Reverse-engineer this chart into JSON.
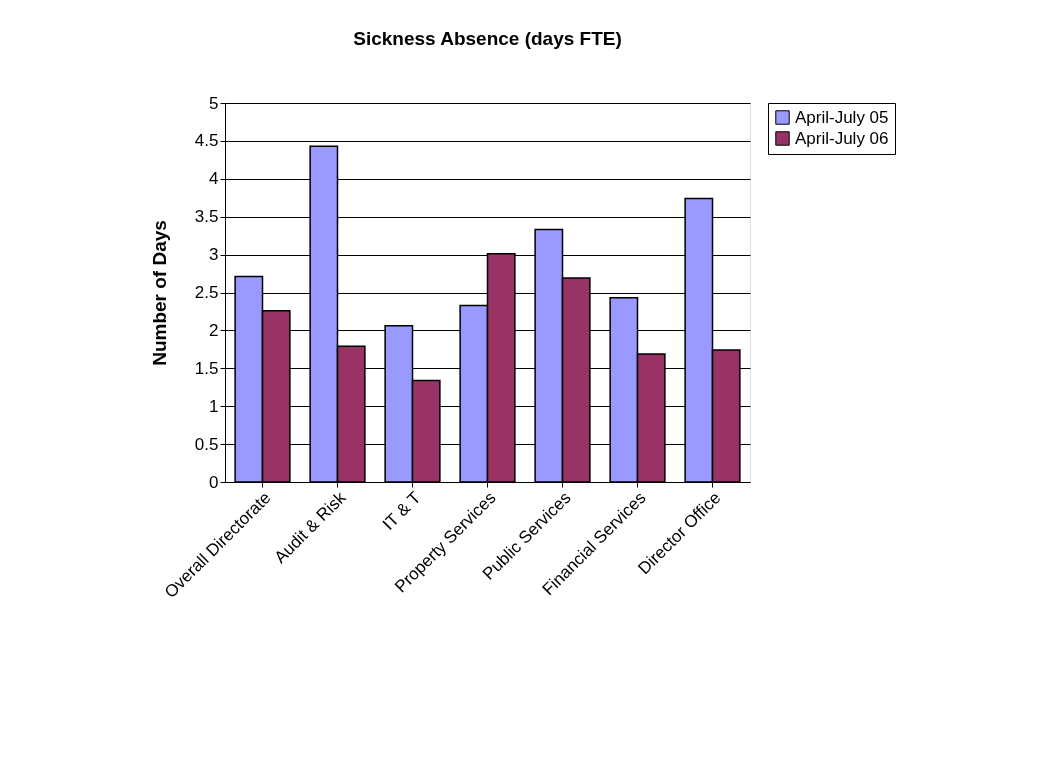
{
  "chart_data": {
    "type": "bar",
    "title": "Sickness Absence (days FTE)",
    "ylabel": "Number of Days",
    "categories": [
      "Overall Directorate",
      "Audit & Risk",
      "IT & T",
      "Property Services",
      "Public Services",
      "Financial Services",
      "Director Office"
    ],
    "series": [
      {
        "name": "April-July 05",
        "color": "#9999ff",
        "values": [
          2.71,
          4.43,
          2.06,
          2.33,
          3.33,
          2.43,
          3.74
        ]
      },
      {
        "name": "April-July 06",
        "color": "#993366",
        "values": [
          2.26,
          1.79,
          1.34,
          3.01,
          2.69,
          1.69,
          1.74
        ]
      }
    ],
    "ylim": [
      0,
      5
    ],
    "yticks": [
      0,
      0.5,
      1,
      1.5,
      2,
      2.5,
      3,
      3.5,
      4,
      4.5,
      5
    ],
    "grid": "y",
    "legend": "right"
  }
}
